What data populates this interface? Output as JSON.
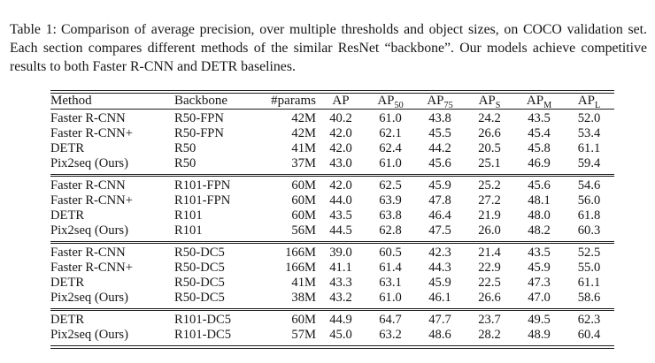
{
  "caption": {
    "label": "Table 1:",
    "text": "Comparison of average precision, over multiple thresholds and object sizes, on COCO validation set. Each section compares different methods of the similar ResNet “backbone”. Our models achieve competitive results to both Faster R-CNN and DETR baselines."
  },
  "table": {
    "column_keys": [
      "method",
      "backbone",
      "params",
      "ap",
      "ap50",
      "ap75",
      "aps",
      "apm",
      "apl"
    ],
    "columns": [
      {
        "text": "Method",
        "sub": ""
      },
      {
        "text": "Backbone",
        "sub": ""
      },
      {
        "text": "#params",
        "sub": ""
      },
      {
        "text": "AP",
        "sub": ""
      },
      {
        "text": "AP",
        "sub": "50"
      },
      {
        "text": "AP",
        "sub": "75"
      },
      {
        "text": "AP",
        "sub": "S"
      },
      {
        "text": "AP",
        "sub": "M"
      },
      {
        "text": "AP",
        "sub": "L"
      }
    ],
    "sections": [
      {
        "rows": [
          {
            "cells": [
              "Faster R-CNN",
              "R50-FPN",
              "42M",
              "40.2",
              "61.0",
              "43.8",
              "24.2",
              "43.5",
              "52.0"
            ],
            "bold": []
          },
          {
            "cells": [
              "Faster R-CNN+",
              "R50-FPN",
              "42M",
              "42.0",
              "62.1",
              "45.5",
              "26.6",
              "45.4",
              "53.4"
            ],
            "bold": []
          },
          {
            "cells": [
              "DETR",
              "R50",
              "41M",
              "42.0",
              "62.4",
              "44.2",
              "20.5",
              "45.8",
              "61.1"
            ],
            "bold": []
          },
          {
            "cells": [
              "Pix2seq (Ours)",
              "R50",
              "37M",
              "43.0",
              "61.0",
              "45.6",
              "25.1",
              "46.9",
              "59.4"
            ],
            "bold": [
              3
            ]
          }
        ]
      },
      {
        "rows": [
          {
            "cells": [
              "Faster R-CNN",
              "R101-FPN",
              "60M",
              "42.0",
              "62.5",
              "45.9",
              "25.2",
              "45.6",
              "54.6"
            ],
            "bold": []
          },
          {
            "cells": [
              "Faster R-CNN+",
              "R101-FPN",
              "60M",
              "44.0",
              "63.9",
              "47.8",
              "27.2",
              "48.1",
              "56.0"
            ],
            "bold": []
          },
          {
            "cells": [
              "DETR",
              "R101",
              "60M",
              "43.5",
              "63.8",
              "46.4",
              "21.9",
              "48.0",
              "61.8"
            ],
            "bold": []
          },
          {
            "cells": [
              "Pix2seq (Ours)",
              "R101",
              "56M",
              "44.5",
              "62.8",
              "47.5",
              "26.0",
              "48.2",
              "60.3"
            ],
            "bold": [
              3
            ]
          }
        ]
      },
      {
        "rows": [
          {
            "cells": [
              "Faster R-CNN",
              "R50-DC5",
              "166M",
              "39.0",
              "60.5",
              "42.3",
              "21.4",
              "43.5",
              "52.5"
            ],
            "bold": []
          },
          {
            "cells": [
              "Faster R-CNN+",
              "R50-DC5",
              "166M",
              "41.1",
              "61.4",
              "44.3",
              "22.9",
              "45.9",
              "55.0"
            ],
            "bold": []
          },
          {
            "cells": [
              "DETR",
              "R50-DC5",
              "41M",
              "43.3",
              "63.1",
              "45.9",
              "22.5",
              "47.3",
              "61.1"
            ],
            "bold": [
              3
            ]
          },
          {
            "cells": [
              "Pix2seq (Ours)",
              "R50-DC5",
              "38M",
              "43.2",
              "61.0",
              "46.1",
              "26.6",
              "47.0",
              "58.6"
            ],
            "bold": [
              3
            ]
          }
        ]
      },
      {
        "rows": [
          {
            "cells": [
              "DETR",
              "R101-DC5",
              "60M",
              "44.9",
              "64.7",
              "47.7",
              "23.7",
              "49.5",
              "62.3"
            ],
            "bold": [
              3
            ]
          },
          {
            "cells": [
              "Pix2seq (Ours)",
              "R101-DC5",
              "57M",
              "45.0",
              "63.2",
              "48.6",
              "28.2",
              "48.9",
              "60.4"
            ],
            "bold": [
              3
            ]
          }
        ]
      }
    ]
  }
}
